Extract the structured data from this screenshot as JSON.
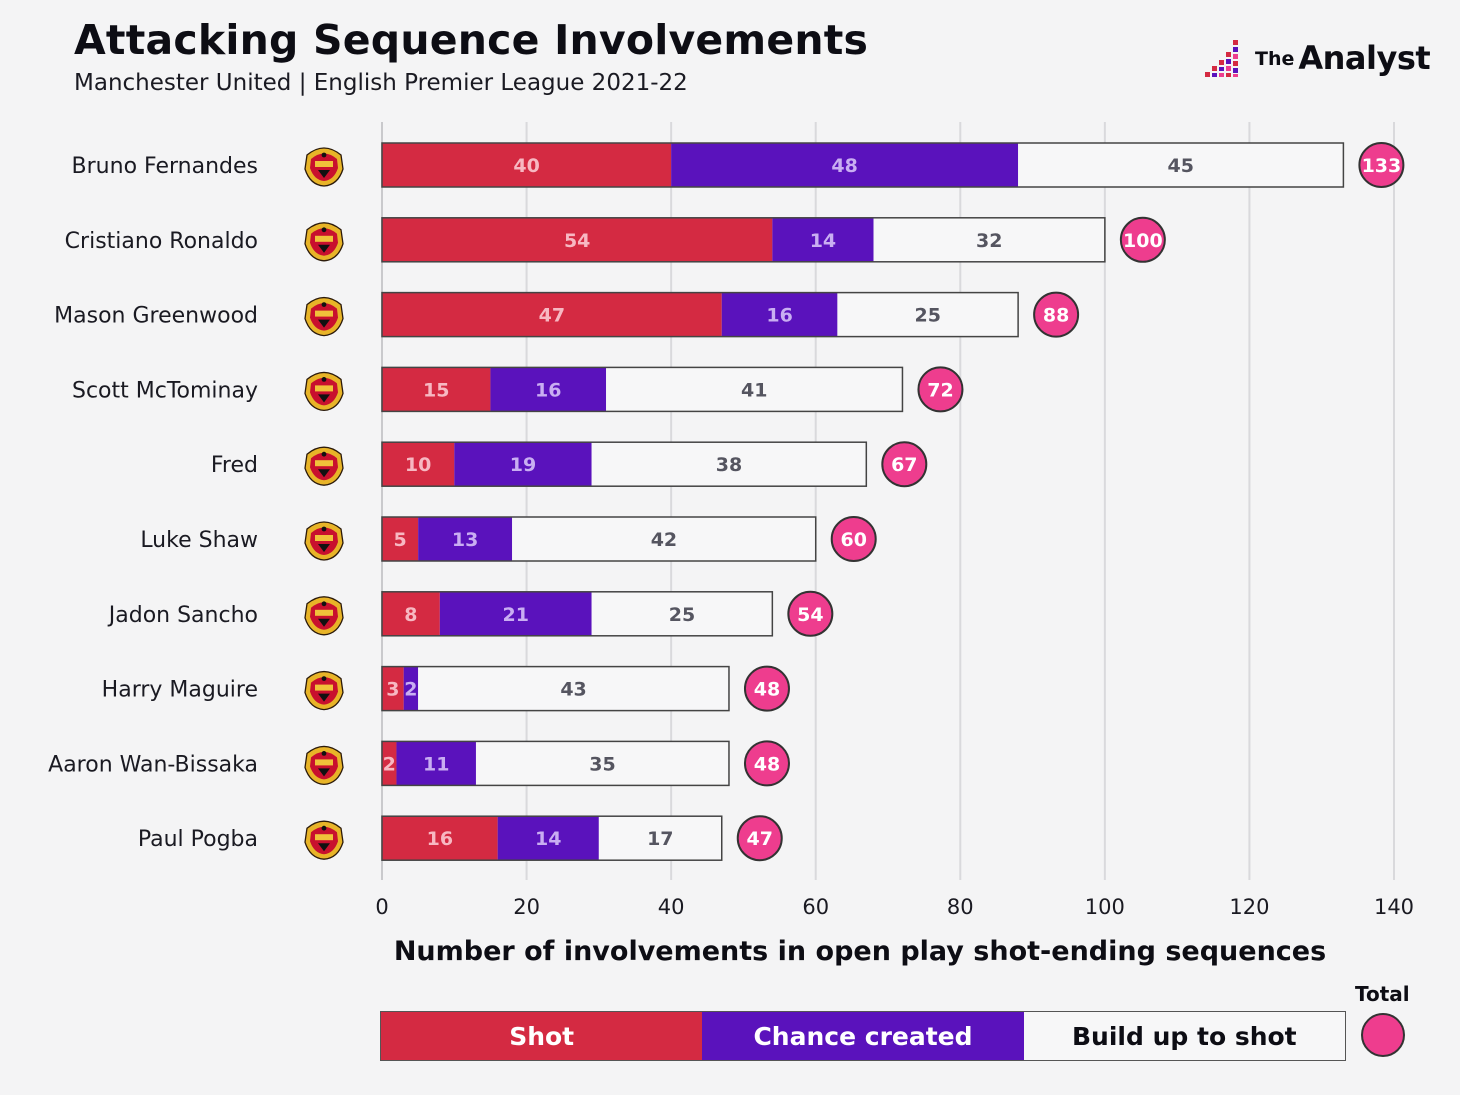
{
  "header": {
    "title": "Attacking Sequence Involvements",
    "subtitle": "Manchester United | English Premier League 2021-22"
  },
  "brand": {
    "the": "The",
    "name": "Analyst"
  },
  "colors": {
    "shot": "#d42a42",
    "chance": "#5a12bc",
    "build": "#f7f7f8",
    "total": "#ee3d8e"
  },
  "icons": {
    "club_crest": "man-utd-crest-icon",
    "brand_logo": "the-analyst-logo-icon"
  },
  "legend": {
    "shot": "Shot",
    "chance": "Chance created",
    "build": "Build up to shot",
    "total": "Total"
  },
  "chart_data": {
    "type": "bar",
    "orientation": "horizontal",
    "stacked": true,
    "title": "Attacking Sequence Involvements",
    "subtitle": "Manchester United | English Premier League 2021-22",
    "xlabel": "Number of involvements in open play shot-ending sequences",
    "ylabel": "",
    "xlim": [
      0,
      140
    ],
    "xticks": [
      0,
      20,
      40,
      60,
      80,
      100,
      120,
      140
    ],
    "grid": "vertical",
    "legend_position": "bottom",
    "categories": [
      "Bruno Fernandes",
      "Cristiano Ronaldo",
      "Mason Greenwood",
      "Scott McTominay",
      "Fred",
      "Luke Shaw",
      "Jadon Sancho",
      "Harry Maguire",
      "Aaron Wan-Bissaka",
      "Paul Pogba"
    ],
    "series": [
      {
        "name": "Shot",
        "values": [
          40,
          54,
          47,
          15,
          10,
          5,
          8,
          3,
          2,
          16
        ]
      },
      {
        "name": "Chance created",
        "values": [
          48,
          14,
          16,
          16,
          19,
          13,
          21,
          2,
          11,
          14
        ]
      },
      {
        "name": "Build up to shot",
        "values": [
          45,
          32,
          25,
          41,
          38,
          42,
          25,
          43,
          35,
          17
        ]
      }
    ],
    "totals": [
      133,
      100,
      88,
      72,
      67,
      60,
      54,
      48,
      48,
      47
    ]
  }
}
